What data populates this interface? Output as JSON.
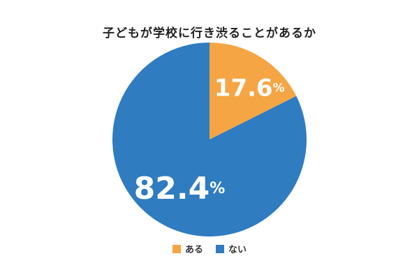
{
  "chart_data": {
    "type": "pie",
    "title": "子どもが学校に行き渋ることがあるか",
    "slices": [
      {
        "label": "ある",
        "value": 17.6,
        "value_text": "17.6",
        "unit": "%",
        "color": "#F5A544"
      },
      {
        "label": "ない",
        "value": 82.4,
        "value_text": "82.4",
        "unit": "%",
        "color": "#2F7CC1"
      }
    ],
    "start_angle": "12 o'clock",
    "direction": "clockwise",
    "legend": {
      "placement": "bottom"
    },
    "background": "#FFFFFF"
  }
}
